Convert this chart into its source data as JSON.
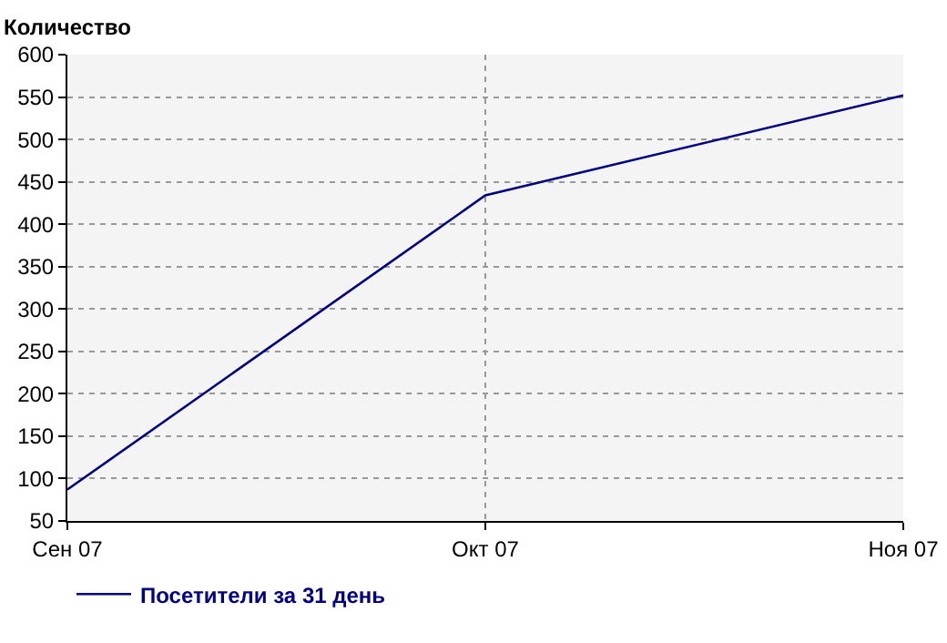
{
  "chart_data": {
    "type": "line",
    "ylabel": "Количество",
    "categories": [
      "Сен 07",
      "Окт 07",
      "Ноя 07"
    ],
    "series": [
      {
        "name": "Посетители за 31 день",
        "color": "#000080",
        "values": [
          87,
          434,
          552
        ]
      }
    ],
    "ylim": [
      50,
      600
    ],
    "yticks": [
      50,
      100,
      150,
      200,
      250,
      300,
      350,
      400,
      450,
      500,
      550,
      600
    ],
    "grid": true,
    "legend": "bottom left",
    "marker": "none",
    "line_style": "solid"
  }
}
